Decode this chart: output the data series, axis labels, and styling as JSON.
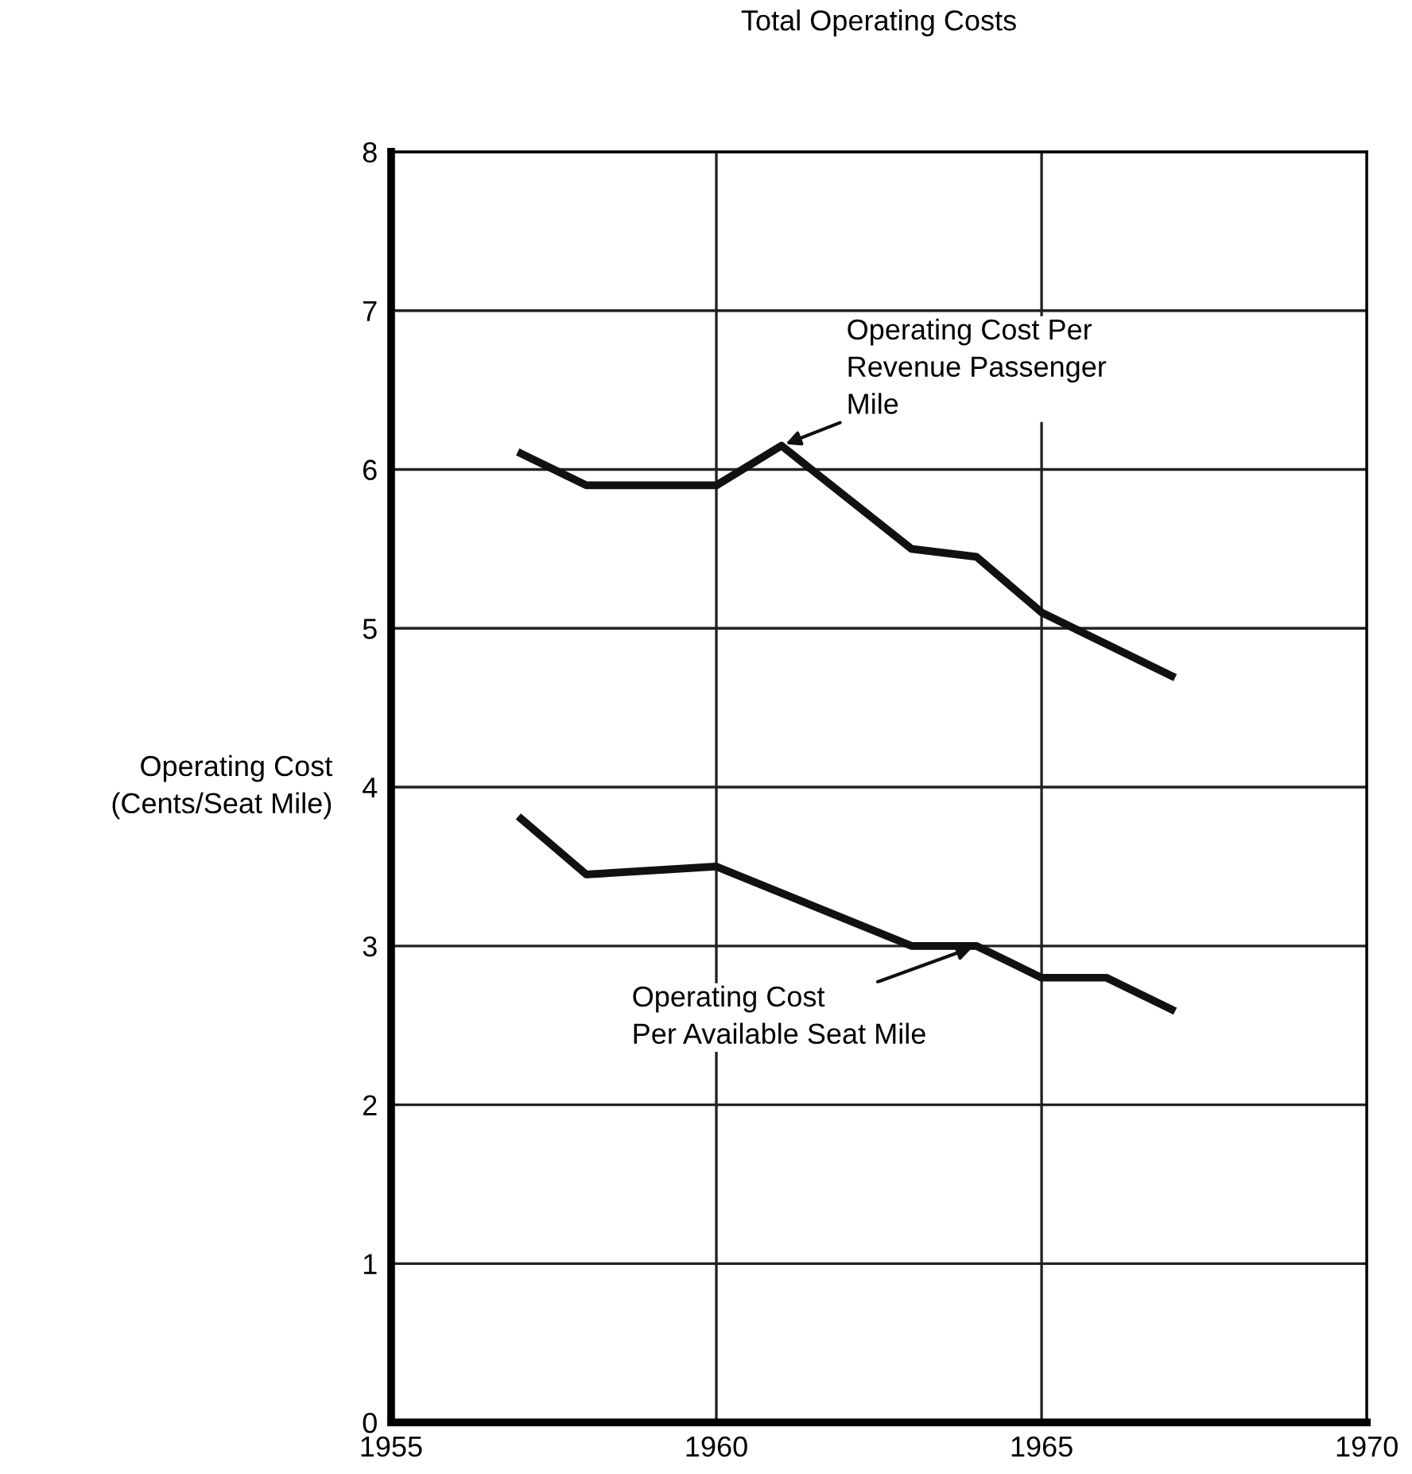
{
  "chart_data": {
    "type": "line",
    "title": "Total Operating Costs",
    "ylabel": "Operating Cost\n(Cents/Seat Mile)",
    "series": [
      {
        "color": "#111111",
        "x": [
          1957,
          1958,
          1960,
          1961,
          1963,
          1964,
          1965,
          1967
        ],
        "values": [
          6.1,
          5.9,
          5.9,
          6.15,
          5.5,
          5.45,
          5.1,
          4.7
        ]
      },
      {
        "color": "#111111",
        "x": [
          1957,
          1958,
          1960,
          1963,
          1964,
          1965,
          1966,
          1967
        ],
        "values": [
          3.8,
          3.45,
          3.5,
          3.0,
          3.0,
          2.8,
          2.8,
          2.6
        ]
      }
    ],
    "annotations": [
      {
        "text": "Operating Cost Per\nRevenue Passenger\nMile",
        "x": 1961,
        "y": 6.15
      },
      {
        "text": "Operating Cost\nPer Available Seat Mile",
        "x": 1964,
        "y": 3.0
      }
    ],
    "xlim": [
      1955,
      1970
    ],
    "xticks": [
      1955,
      1960,
      1965,
      1970
    ],
    "ylim": [
      0,
      8
    ],
    "yticks": [
      0,
      1,
      2,
      3,
      4,
      5,
      6,
      7,
      8
    ],
    "grid": true,
    "marker": "none",
    "line_style": "solid"
  }
}
